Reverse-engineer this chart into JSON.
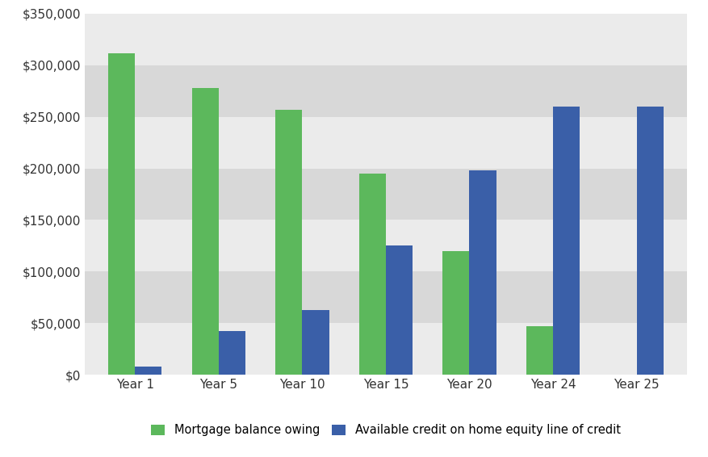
{
  "categories": [
    "Year 1",
    "Year 5",
    "Year 10",
    "Year 15",
    "Year 20",
    "Year 24",
    "Year 25"
  ],
  "mortgage_values": [
    312000,
    278000,
    257000,
    195000,
    120000,
    47000,
    0
  ],
  "credit_values": [
    8000,
    42000,
    63000,
    125000,
    198000,
    260000,
    260000
  ],
  "mortgage_color": "#5cb85c",
  "credit_color": "#3a5fa8",
  "figure_bg_color": "#ffffff",
  "plot_bg_color": "#e8e8e8",
  "ylim": [
    0,
    350000
  ],
  "yticks": [
    0,
    50000,
    100000,
    150000,
    200000,
    250000,
    300000,
    350000
  ],
  "legend_labels": [
    "Mortgage balance owing",
    "Available credit on home equity line of credit"
  ],
  "bar_width": 0.32,
  "figsize": [
    8.77,
    5.66
  ],
  "dpi": 100,
  "stripe_light": "#ebebeb",
  "stripe_dark": "#d8d8d8"
}
